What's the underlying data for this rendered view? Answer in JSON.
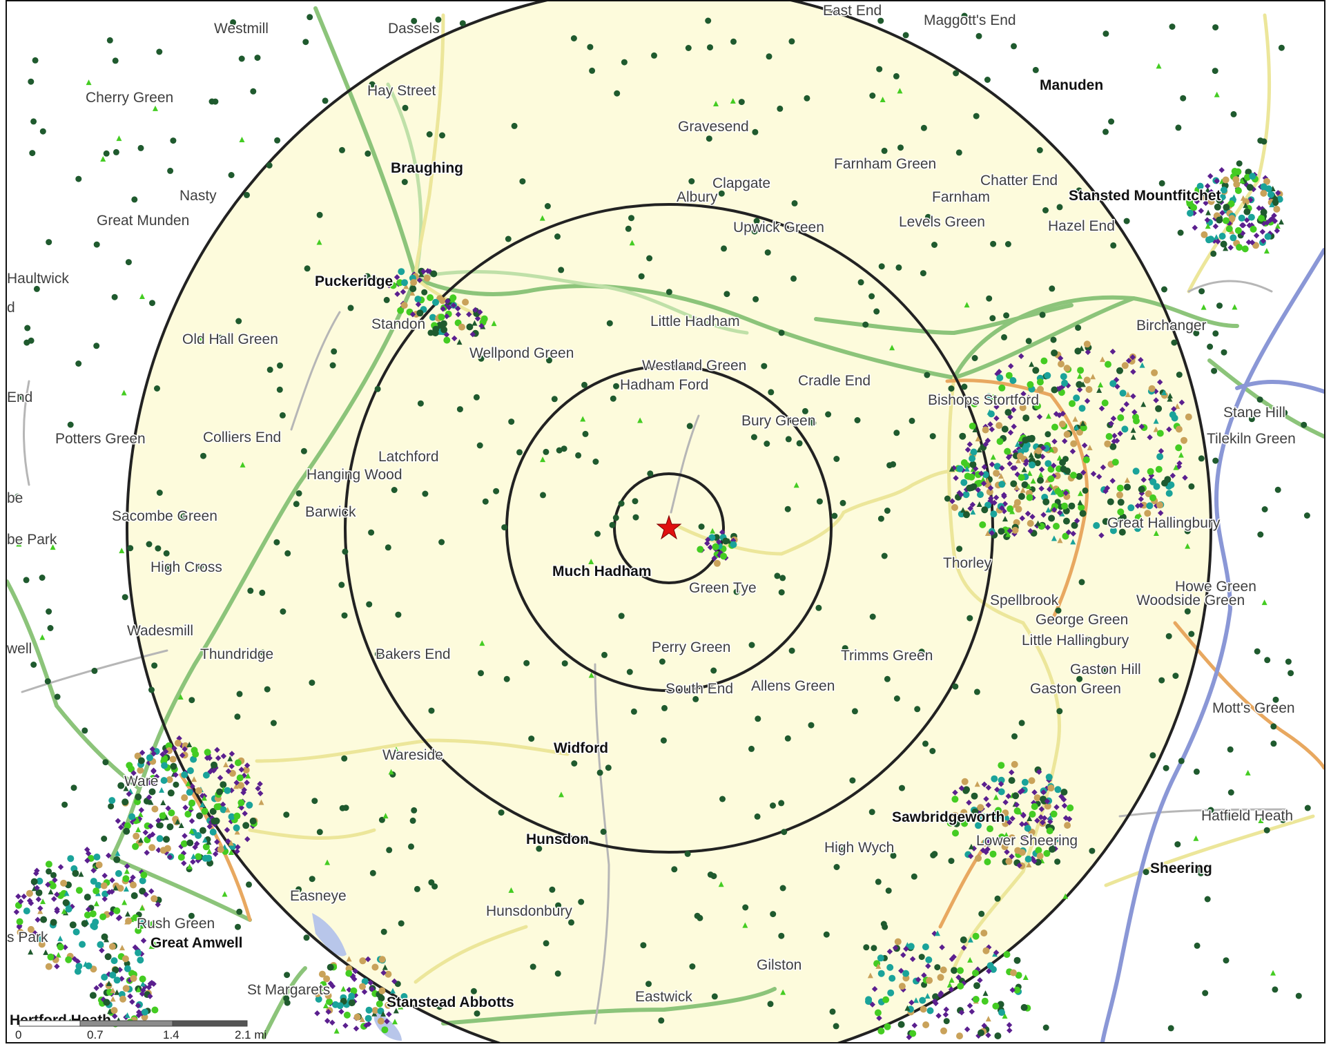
{
  "map": {
    "places_regular": [
      "Westmill",
      "Dassels",
      "Maggott's End",
      "Cherry Green",
      "Hay Street",
      "Gravesend",
      "Farnham Green",
      "Clapgate",
      "Albury",
      "Chatter End",
      "Farnham",
      "Nasty",
      "Great Munden",
      "Upwick Green",
      "Levels Green",
      "Hazel End",
      "Haultwick",
      "Standon",
      "Old Hall Green",
      "Little Hadham",
      "Wellpond Green",
      "Westland Green",
      "Hadham Ford",
      "Cradle End",
      "Potters Green",
      "Colliers End",
      "Bury Green",
      "Latchford",
      "Hanging Wood",
      "Barwick",
      "Sacombe Green",
      "High Cross",
      "Green Tye",
      "Thorley",
      "Spellbrook",
      "George Green",
      "Little Hallingbury",
      "Woodside Green",
      "Howe Green",
      "Wadesmill",
      "Thundridge",
      "Bakers End",
      "Perry Green",
      "Trimms Green",
      "Gaston Hill",
      "Gaston Green",
      "South End",
      "Allens Green",
      "Mott's Green",
      "Wareside",
      "Ware",
      "Hatfield Heath",
      "High Wych",
      "Lower Sheering",
      "Easneye",
      "Rush Green",
      "Hunsdonbury",
      "Gilston",
      "St Margarets",
      "Eastwick",
      "Birchanger",
      "Stane Hill",
      "Tilekiln Green",
      "Great Hallingbury",
      "Bishops Stortford",
      "Hertford Heath",
      "East End",
      "End",
      "well",
      "be",
      "be Park",
      "d",
      "s Park"
    ],
    "places_bold": [
      "Manuden",
      "Braughing",
      "Stansted Mountfitchet",
      "Puckeridge",
      "Much Hadham",
      "Widford",
      "Hunsdon",
      "Sawbridgeworth",
      "Sheering",
      "Great Amwell",
      "Stanstead Abbotts"
    ],
    "scale_bar": {
      "labels": [
        "0",
        "0.7",
        "1.4",
        "2.1 mi"
      ]
    },
    "colors": {
      "buffer_fill": "#fdfbdc",
      "ring": "#222222",
      "river": "#8a97d6",
      "road_green": "#8cc47a",
      "road_yellow": "#ece69a",
      "road_orange": "#e8a860",
      "point_darkgreen": "#1f5a2e",
      "point_purple": "#5b1f8f",
      "point_lime": "#44cc22",
      "point_teal": "#1aa39a",
      "point_tan": "#c9a25a",
      "center_star": "#e01010"
    }
  }
}
